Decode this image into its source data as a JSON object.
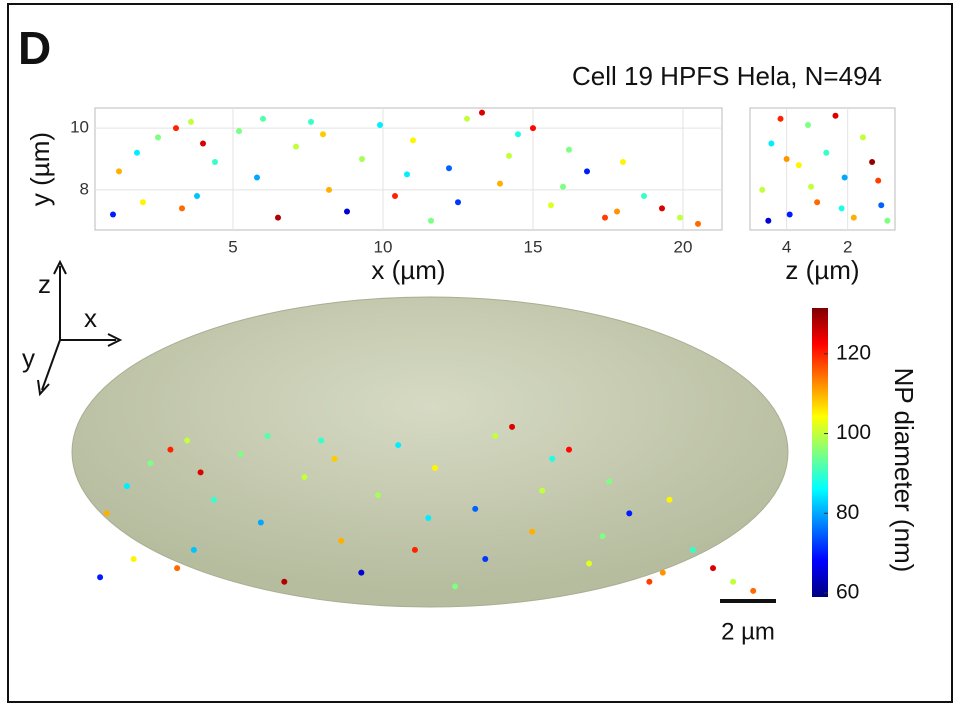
{
  "panel_label": "D",
  "title": "Cell 19 HPFS Hela, N=494",
  "triad": {
    "z": "z",
    "x": "x",
    "y": "y"
  },
  "scale_bar": "2 µm",
  "chart_data": [
    {
      "type": "scatter",
      "xlabel": "x (µm)",
      "ylabel": "y (µm)",
      "xlim": [
        0.4,
        21.3
      ],
      "ylim": [
        6.7,
        10.65
      ],
      "xticks": [
        5,
        10,
        15,
        20
      ],
      "yticks": [
        8,
        10
      ],
      "grid": true,
      "x": [
        1.2,
        1.8,
        2.5,
        3.1,
        3.6,
        4.0,
        4.4,
        1.0,
        2.0,
        3.3,
        5.2,
        5.8,
        6.5,
        7.1,
        7.6,
        8.2,
        8.8,
        9.3,
        9.9,
        10.4,
        11.0,
        11.6,
        12.2,
        12.8,
        13.3,
        13.9,
        14.5,
        15.0,
        15.6,
        16.2,
        16.8,
        17.4,
        18.0,
        18.7,
        19.3,
        19.9,
        20.5,
        6.0,
        8.0,
        10.8,
        12.5,
        14.2,
        16.0,
        17.8,
        3.8
      ],
      "y": [
        8.6,
        9.2,
        9.7,
        10.0,
        10.2,
        9.5,
        8.9,
        7.2,
        7.6,
        7.4,
        9.9,
        8.4,
        7.1,
        9.4,
        10.2,
        8.0,
        7.3,
        9.0,
        10.1,
        7.8,
        9.6,
        7.0,
        8.7,
        10.3,
        10.5,
        8.2,
        9.8,
        10.0,
        7.5,
        9.3,
        8.6,
        7.1,
        8.9,
        7.8,
        7.4,
        7.1,
        6.9,
        10.3,
        9.8,
        8.5,
        7.6,
        9.1,
        8.1,
        7.3,
        7.8
      ],
      "diameter": [
        110,
        85,
        95,
        120,
        100,
        125,
        90,
        70,
        105,
        115,
        95,
        80,
        128,
        100,
        90,
        110,
        65,
        98,
        85,
        120,
        105,
        95,
        75,
        100,
        125,
        110,
        88,
        122,
        102,
        95,
        70,
        118,
        105,
        90,
        125,
        100,
        115,
        92,
        108,
        85,
        72,
        100,
        95,
        112,
        82
      ]
    },
    {
      "type": "scatter",
      "xlabel": "z (µm)",
      "xlim": [
        5.2,
        0.45
      ],
      "ylim": [
        6.7,
        10.65
      ],
      "xticks": [
        4,
        2
      ],
      "grid": true,
      "x": [
        4.8,
        4.5,
        4.2,
        3.9,
        3.6,
        3.3,
        3.0,
        2.7,
        2.4,
        2.1,
        1.8,
        1.5,
        1.2,
        0.9,
        0.7,
        4.6,
        4.0,
        3.2,
        2.2,
        1.0
      ],
      "y": [
        8.0,
        9.5,
        10.3,
        7.2,
        8.8,
        10.1,
        7.6,
        9.2,
        10.4,
        8.4,
        7.1,
        9.7,
        8.9,
        7.5,
        7.0,
        7.0,
        9.0,
        8.1,
        7.4,
        8.3
      ],
      "diameter": [
        100,
        85,
        120,
        70,
        105,
        95,
        115,
        90,
        125,
        80,
        110,
        100,
        130,
        75,
        95,
        65,
        112,
        100,
        88,
        118
      ]
    },
    {
      "type": "colorbar",
      "label": "NP diameter (nm)",
      "clim": [
        59,
        131.5
      ],
      "ticks": [
        60,
        80,
        100,
        120
      ],
      "colormap": "jet"
    }
  ]
}
